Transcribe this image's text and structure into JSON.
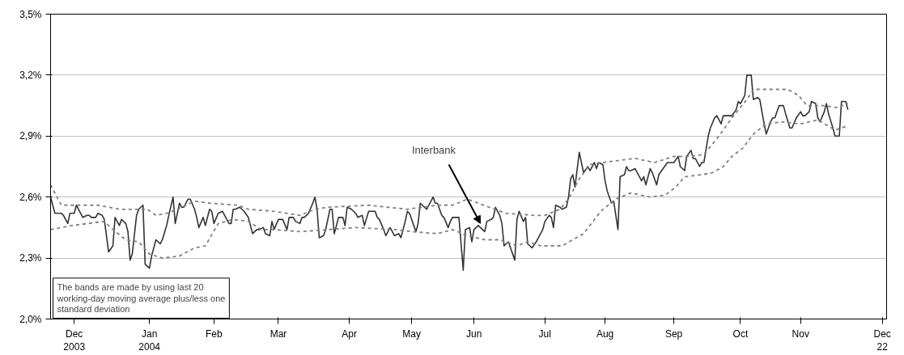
{
  "chart_data": {
    "type": "line",
    "xlim": [
      "2003-12-01",
      "2004-12-24"
    ],
    "ylim": [
      2.0,
      3.5
    ],
    "xticks": [
      {
        "value": "2003-12-12",
        "label": "Dec\n2003"
      },
      {
        "value": "2004-01-16",
        "label": "Jan\n2004"
      },
      {
        "value": "2004-02-15",
        "label": "Feb"
      },
      {
        "value": "2004-03-16",
        "label": "Mar"
      },
      {
        "value": "2004-04-18",
        "label": "Apr"
      },
      {
        "value": "2004-05-17",
        "label": "May"
      },
      {
        "value": "2004-06-15",
        "label": "Jun"
      },
      {
        "value": "2004-07-18",
        "label": "Jul"
      },
      {
        "value": "2004-08-15",
        "label": "Aug"
      },
      {
        "value": "2004-09-16",
        "label": "Sep"
      },
      {
        "value": "2004-10-17",
        "label": "Oct"
      },
      {
        "value": "2004-11-14",
        "label": "Nov"
      },
      {
        "value": "2004-12-22",
        "label": "Dec\n22"
      }
    ],
    "yticks": [
      {
        "value": 2.0,
        "label": "2,0%"
      },
      {
        "value": 2.3,
        "label": "2,3%"
      },
      {
        "value": 2.6,
        "label": "2,6%"
      },
      {
        "value": 2.9,
        "label": "2,9%"
      },
      {
        "value": 3.2,
        "label": "3,2%"
      },
      {
        "value": 3.5,
        "label": "3,5%"
      }
    ],
    "grid": "y",
    "series": [
      {
        "color": "#333333",
        "line_style": "solid",
        "x": [
          "2003-12-01",
          "2003-12-03",
          "2003-12-06",
          "2003-12-07",
          "2003-12-09",
          "2003-12-10",
          "2003-12-12",
          "2003-12-13",
          "2003-12-14",
          "2003-12-16",
          "2003-12-18",
          "2003-12-19",
          "2003-12-20",
          "2003-12-22",
          "2003-12-23",
          "2003-12-25",
          "2003-12-26",
          "2003-12-28",
          "2003-12-30",
          "2003-12-31",
          "2004-01-02",
          "2004-01-03",
          "2004-01-05",
          "2004-01-06",
          "2004-01-07",
          "2004-01-08",
          "2004-01-10",
          "2004-01-11",
          "2004-01-13",
          "2004-01-14",
          "2004-01-16",
          "2004-01-17",
          "2004-01-19",
          "2004-01-21",
          "2004-01-22",
          "2004-01-24",
          "2004-01-25",
          "2004-01-27",
          "2004-01-28",
          "2004-01-30",
          "2004-01-31",
          "2004-02-01",
          "2004-02-03",
          "2004-02-04",
          "2004-02-06",
          "2004-02-07",
          "2004-02-08",
          "2004-02-10",
          "2004-02-11",
          "2004-02-13",
          "2004-02-14",
          "2004-02-15",
          "2004-02-17",
          "2004-02-19",
          "2004-02-20",
          "2004-02-22",
          "2004-02-23",
          "2004-02-24",
          "2004-02-25",
          "2004-02-27",
          "2004-02-28",
          "2004-02-29",
          "2004-03-02",
          "2004-03-03",
          "2004-03-04",
          "2004-03-06",
          "2004-03-07",
          "2004-03-09",
          "2004-03-10",
          "2004-03-12",
          "2004-03-13",
          "2004-03-14",
          "2004-03-16",
          "2004-03-17",
          "2004-03-18",
          "2004-03-20",
          "2004-03-21",
          "2004-03-23",
          "2004-03-24",
          "2004-03-26",
          "2004-03-27",
          "2004-03-28",
          "2004-03-30",
          "2004-04-01",
          "2004-04-02",
          "2004-04-03",
          "2004-04-04",
          "2004-04-06",
          "2004-04-07",
          "2004-04-09",
          "2004-04-10",
          "2004-04-11",
          "2004-04-13",
          "2004-04-15",
          "2004-04-16",
          "2004-04-17",
          "2004-04-19",
          "2004-04-20",
          "2004-04-21",
          "2004-04-22",
          "2004-04-24",
          "2004-04-25",
          "2004-04-27",
          "2004-04-28",
          "2004-04-30",
          "2004-05-01",
          "2004-05-02",
          "2004-05-04",
          "2004-05-05",
          "2004-05-07",
          "2004-05-08",
          "2004-05-09",
          "2004-05-11",
          "2004-05-12",
          "2004-05-14",
          "2004-05-15",
          "2004-05-16",
          "2004-05-17",
          "2004-05-19",
          "2004-05-20",
          "2004-05-21",
          "2004-05-23",
          "2004-05-24",
          "2004-05-27",
          "2004-05-28",
          "2004-05-29",
          "2004-05-31",
          "2004-06-01",
          "2004-06-03",
          "2004-06-04",
          "2004-06-05",
          "2004-06-07",
          "2004-06-08",
          "2004-06-10",
          "2004-06-11",
          "2004-06-13",
          "2004-06-14",
          "2004-06-15",
          "2004-06-17",
          "2004-06-18",
          "2004-06-20",
          "2004-06-21",
          "2004-06-23",
          "2004-06-24",
          "2004-06-25",
          "2004-06-27",
          "2004-06-28",
          "2004-06-29",
          "2004-07-01",
          "2004-07-02",
          "2004-07-04",
          "2004-07-05",
          "2004-07-06",
          "2004-07-08",
          "2004-07-09",
          "2004-07-10",
          "2004-07-12",
          "2004-07-14",
          "2004-07-15",
          "2004-07-17",
          "2004-07-18",
          "2004-07-20",
          "2004-07-21",
          "2004-07-22",
          "2004-07-23",
          "2004-07-25",
          "2004-07-26",
          "2004-07-28",
          "2004-07-29",
          "2004-07-30",
          "2004-07-31",
          "2004-08-01",
          "2004-08-03",
          "2004-08-05",
          "2004-08-07",
          "2004-08-08",
          "2004-08-10",
          "2004-08-11",
          "2004-08-12",
          "2004-08-14",
          "2004-08-15",
          "2004-08-16",
          "2004-08-18",
          "2004-08-19",
          "2004-08-21",
          "2004-08-22",
          "2004-08-24",
          "2004-08-25",
          "2004-08-26",
          "2004-08-27",
          "2004-08-29",
          "2004-08-30",
          "2004-09-01",
          "2004-09-02",
          "2004-09-03",
          "2004-09-05",
          "2004-09-06",
          "2004-09-08",
          "2004-09-09",
          "2004-09-11",
          "2004-09-13",
          "2004-09-15",
          "2004-09-16",
          "2004-09-18",
          "2004-09-19",
          "2004-09-21",
          "2004-09-22",
          "2004-09-24",
          "2004-09-25",
          "2004-09-26",
          "2004-09-28",
          "2004-09-29",
          "2004-09-30",
          "2004-10-02",
          "2004-10-03",
          "2004-10-05",
          "2004-10-06",
          "2004-10-08",
          "2004-10-09",
          "2004-10-10",
          "2004-10-12",
          "2004-10-13",
          "2004-10-15",
          "2004-10-16",
          "2004-10-17",
          "2004-10-19",
          "2004-10-20",
          "2004-10-22",
          "2004-10-23",
          "2004-10-25",
          "2004-10-26",
          "2004-10-28",
          "2004-10-29",
          "2004-10-31",
          "2004-11-01",
          "2004-11-02",
          "2004-11-04",
          "2004-11-05",
          "2004-11-06",
          "2004-11-07",
          "2004-11-09",
          "2004-11-10",
          "2004-11-12",
          "2004-11-14",
          "2004-11-15",
          "2004-11-16",
          "2004-11-18",
          "2004-11-19",
          "2004-11-21",
          "2004-11-22",
          "2004-11-23",
          "2004-11-25",
          "2004-11-26",
          "2004-11-27",
          "2004-11-29",
          "2004-11-30",
          "2004-12-02",
          "2004-12-03",
          "2004-12-05",
          "2004-12-06"
        ],
        "values": [
          2.6,
          2.52,
          2.52,
          2.51,
          2.47,
          2.52,
          2.52,
          2.56,
          2.54,
          2.5,
          2.51,
          2.51,
          2.5,
          2.5,
          2.52,
          2.51,
          2.49,
          2.33,
          2.36,
          2.5,
          2.46,
          2.49,
          2.47,
          2.43,
          2.29,
          2.32,
          2.51,
          2.54,
          2.56,
          2.27,
          2.25,
          2.31,
          2.39,
          2.37,
          2.39,
          2.46,
          2.51,
          2.6,
          2.47,
          2.57,
          2.55,
          2.55,
          2.59,
          2.59,
          2.54,
          2.5,
          2.45,
          2.5,
          2.46,
          2.54,
          2.53,
          2.47,
          2.52,
          2.53,
          2.51,
          2.47,
          2.47,
          2.54,
          2.54,
          2.55,
          2.54,
          2.53,
          2.5,
          2.46,
          2.42,
          2.44,
          2.44,
          2.45,
          2.42,
          2.41,
          2.48,
          2.44,
          2.49,
          2.49,
          2.49,
          2.44,
          2.5,
          2.5,
          2.48,
          2.47,
          2.5,
          2.5,
          2.52,
          2.57,
          2.6,
          2.54,
          2.4,
          2.41,
          2.44,
          2.54,
          2.54,
          2.42,
          2.5,
          2.5,
          2.46,
          2.55,
          2.54,
          2.53,
          2.52,
          2.5,
          2.51,
          2.46,
          2.53,
          2.53,
          2.53,
          2.5,
          2.49,
          2.44,
          2.41,
          2.45,
          2.43,
          2.41,
          2.42,
          2.4,
          2.48,
          2.53,
          2.52,
          2.49,
          2.43,
          2.47,
          2.57,
          2.55,
          2.54,
          2.6,
          2.57,
          2.57,
          2.51,
          2.5,
          2.45,
          2.48,
          2.5,
          2.5,
          2.5,
          2.24,
          2.44,
          2.45,
          2.38,
          2.44,
          2.46,
          2.45,
          2.43,
          2.48,
          2.49,
          2.5,
          2.55,
          2.51,
          2.47,
          2.36,
          2.38,
          2.35,
          2.29,
          2.49,
          2.53,
          2.48,
          2.5,
          2.37,
          2.35,
          2.38,
          2.4,
          2.44,
          2.48,
          2.51,
          2.5,
          2.45,
          2.56,
          2.55,
          2.54,
          2.55,
          2.6,
          2.69,
          2.71,
          2.65,
          2.82,
          2.72,
          2.75,
          2.73,
          2.77,
          2.74,
          2.77,
          2.76,
          2.68,
          2.63,
          2.57,
          2.58,
          2.44,
          2.7,
          2.71,
          2.75,
          2.73,
          2.73,
          2.74,
          2.72,
          2.68,
          2.7,
          2.66,
          2.74,
          2.72,
          2.66,
          2.71,
          2.74,
          2.77,
          2.77,
          2.77,
          2.8,
          2.75,
          2.73,
          2.8,
          2.83,
          2.79,
          2.79,
          2.75,
          2.77,
          2.77,
          2.9,
          2.94,
          2.99,
          3.0,
          2.96,
          3.0,
          3.0,
          3.0,
          3.0,
          3.03,
          3.07,
          3.06,
          3.1,
          3.2,
          3.2,
          3.08,
          3.09,
          3.08,
          2.96,
          2.91,
          2.97,
          2.99,
          2.99,
          3.05,
          3.05,
          3.05,
          3.01,
          2.94,
          2.94,
          2.99,
          3.02,
          3.0,
          3.0,
          3.02,
          3.07,
          3.06,
          2.99,
          2.97,
          3.02,
          3.06,
          3.01,
          2.94,
          2.9,
          2.9,
          3.07,
          3.07,
          3.03
        ]
      },
      {
        "color": "#808080",
        "line_style": "dashed",
        "x": [
          "2003-12-01",
          "2003-12-06",
          "2003-12-18",
          "2003-12-23",
          "2004-01-02",
          "2004-01-08",
          "2004-01-15",
          "2004-01-19",
          "2004-01-24",
          "2004-01-29",
          "2004-02-06",
          "2004-02-13",
          "2004-02-26",
          "2004-03-02",
          "2004-03-14",
          "2004-03-26",
          "2004-04-02",
          "2004-04-08",
          "2004-04-27",
          "2004-05-15",
          "2004-05-29",
          "2004-06-05",
          "2004-06-12",
          "2004-06-22",
          "2004-06-30",
          "2004-07-13",
          "2004-07-18",
          "2004-07-25",
          "2004-07-29",
          "2004-08-03",
          "2004-08-08",
          "2004-08-14",
          "2004-08-29",
          "2004-09-07",
          "2004-09-16",
          "2004-09-24",
          "2004-09-30",
          "2004-10-07",
          "2004-10-13",
          "2004-10-20",
          "2004-10-23",
          "2004-11-02",
          "2004-11-08",
          "2004-11-13",
          "2004-11-17",
          "2004-11-25",
          "2004-12-01",
          "2004-12-06"
        ],
        "values": [
          2.66,
          2.56,
          2.56,
          2.56,
          2.54,
          2.54,
          2.54,
          2.51,
          2.52,
          2.54,
          2.58,
          2.57,
          2.56,
          2.54,
          2.53,
          2.51,
          2.54,
          2.55,
          2.56,
          2.54,
          2.56,
          2.56,
          2.59,
          2.55,
          2.52,
          2.51,
          2.51,
          2.54,
          2.59,
          2.69,
          2.76,
          2.77,
          2.79,
          2.77,
          2.8,
          2.8,
          2.81,
          2.9,
          2.99,
          3.08,
          3.13,
          3.13,
          3.13,
          3.1,
          3.05,
          3.05,
          3.04,
          3.06
        ]
      },
      {
        "color": "#808080",
        "line_style": "dashed",
        "x": [
          "2003-12-01",
          "2003-12-11",
          "2003-12-26",
          "2003-12-30",
          "2004-01-05",
          "2004-01-11",
          "2004-01-16",
          "2004-01-22",
          "2004-01-30",
          "2004-02-06",
          "2004-02-11",
          "2004-02-17",
          "2004-02-24",
          "2004-03-02",
          "2004-03-08",
          "2004-03-14",
          "2004-03-26",
          "2004-04-08",
          "2004-04-21",
          "2004-05-09",
          "2004-05-17",
          "2004-05-29",
          "2004-06-05",
          "2004-06-12",
          "2004-06-20",
          "2004-06-27",
          "2004-07-05",
          "2004-07-10",
          "2004-07-16",
          "2004-07-26",
          "2004-07-31",
          "2004-08-05",
          "2004-08-13",
          "2004-08-20",
          "2004-08-27",
          "2004-09-05",
          "2004-09-12",
          "2004-09-17",
          "2004-09-21",
          "2004-09-29",
          "2004-10-04",
          "2004-10-09",
          "2004-10-13",
          "2004-10-18",
          "2004-10-23",
          "2004-10-29",
          "2004-11-05",
          "2004-11-14",
          "2004-11-22",
          "2004-11-30",
          "2004-12-06"
        ],
        "values": [
          2.44,
          2.46,
          2.48,
          2.44,
          2.39,
          2.38,
          2.32,
          2.3,
          2.31,
          2.35,
          2.36,
          2.47,
          2.49,
          2.48,
          2.44,
          2.44,
          2.43,
          2.44,
          2.45,
          2.44,
          2.43,
          2.42,
          2.44,
          2.41,
          2.39,
          2.39,
          2.36,
          2.38,
          2.36,
          2.36,
          2.39,
          2.42,
          2.53,
          2.59,
          2.62,
          2.6,
          2.61,
          2.65,
          2.7,
          2.71,
          2.72,
          2.75,
          2.8,
          2.84,
          2.91,
          2.96,
          2.97,
          2.96,
          2.98,
          2.93,
          2.95
        ]
      }
    ],
    "annotations": [
      {
        "text": "Interbank",
        "x": "2004-06-18",
        "y": 2.47
      },
      "The bands are made by using last 20 working-day moving average plus/less one standard deviation"
    ]
  }
}
